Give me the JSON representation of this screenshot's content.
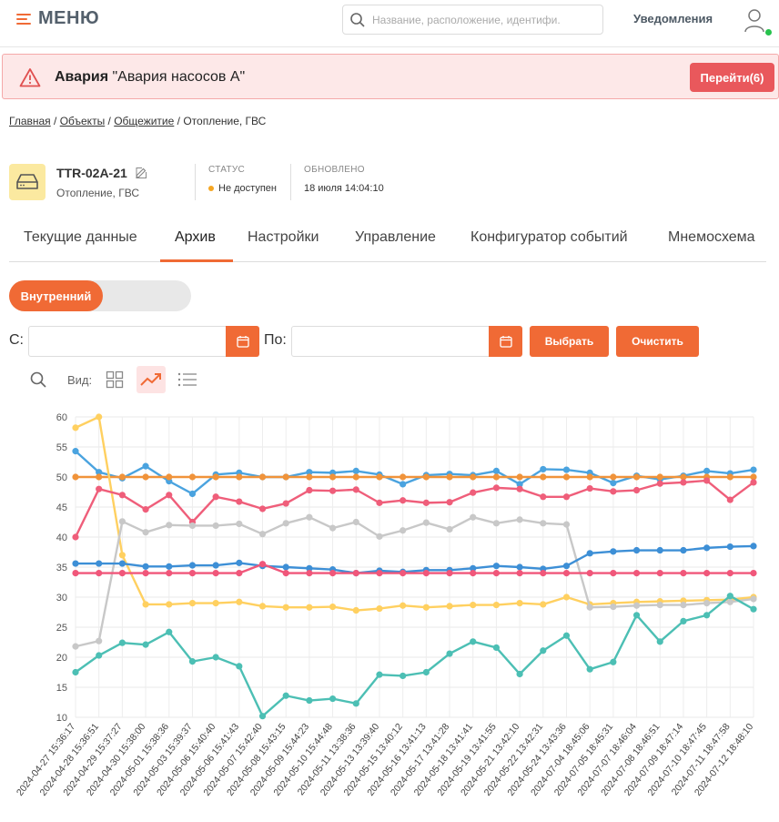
{
  "header": {
    "menu_label": "МЕНЮ",
    "search_placeholder": "Название, расположение, идентифи.",
    "notifications_label": "Уведомления"
  },
  "alarm": {
    "title": "Авария",
    "message": "\"Авария насосов А\"",
    "button_label": "Перейти(6)",
    "color": "#e9585c"
  },
  "breadcrumb": {
    "items": [
      "Главная",
      "Объекты",
      "Общежитие"
    ],
    "current": "Отопление, ГВС"
  },
  "device": {
    "name": "TTR-02A-21",
    "subtitle": "Отопление, ГВС",
    "status_label": "СТАТУС",
    "status_value": "Не доступен",
    "updated_label": "ОБНОВЛЕНО",
    "updated_value": "18 июля 14:04:10"
  },
  "tabs": [
    "Текущие данные",
    "Архив",
    "Настройки",
    "Управление",
    "Конфигуратор событий",
    "Мнемосхема"
  ],
  "active_tab": "Архив",
  "toggle": {
    "label": "Внутренний"
  },
  "filter": {
    "from_label": "С:",
    "to_label": "По:",
    "from_value": "",
    "to_value": "",
    "select_button": "Выбрать",
    "clear_button": "Очистить"
  },
  "view": {
    "label": "Вид:",
    "active": "chart"
  },
  "accent_color": "#f06a35",
  "chart_data": {
    "type": "line",
    "ylim": [
      10,
      60
    ],
    "yticks": [
      10,
      15,
      20,
      25,
      30,
      35,
      40,
      45,
      50,
      55,
      60
    ],
    "grid": true,
    "x": [
      "2024-04-27 15:36:17",
      "2024-04-28 15:36:51",
      "2024-04-29 15:37:27",
      "2024-04-30 15:38:00",
      "2024-05-01 15:38:36",
      "2024-05-03 15:39:37",
      "2024-05-06 15:40:40",
      "2024-05-06 15:41:43",
      "2024-05-07 15:42:40",
      "2024-05-08 15:43:15",
      "2024-05-09 15:44:23",
      "2024-05-10 15:44:48",
      "2024-05-11 13:38:36",
      "2024-05-13 13:39:40",
      "2024-05-15 13:40:12",
      "2024-05-16 13:41:13",
      "2024-05-17 13:41:28",
      "2024-05-18 13:41:41",
      "2024-05-19 13:41:55",
      "2024-05-21 13:42:10",
      "2024-05-22 13:42:31",
      "2024-05-24 13:43:36",
      "2024-07-04 18:45:06",
      "2024-07-05 18:45:31",
      "2024-07-07 18:46:04",
      "2024-07-08 18:46:51",
      "2024-07-09 18:47:14",
      "2024-07-10 18:47:45",
      "2024-07-11 18:47:58",
      "2024-07-12 18:48:10"
    ],
    "series": [
      {
        "color": "#4aa3df",
        "values": [
          54.3,
          50.8,
          49.8,
          51.8,
          49.3,
          47.2,
          50.4,
          50.7,
          50.0,
          50.0,
          50.8,
          50.7,
          51.0,
          50.4,
          48.8,
          50.3,
          50.5,
          50.3,
          51.0,
          48.8,
          51.3,
          51.2,
          50.7,
          49.0,
          50.2,
          49.6,
          50.2,
          51.0,
          50.6,
          51.2
        ]
      },
      {
        "color": "#f0933a",
        "values": [
          50.0,
          50.0,
          50.0,
          50.0,
          50.0,
          50.0,
          50.0,
          50.0,
          50.0,
          50.0,
          50.0,
          50.0,
          50.0,
          50.0,
          50.0,
          50.0,
          50.0,
          50.0,
          50.0,
          50.0,
          50.0,
          50.0,
          50.0,
          50.0,
          50.0,
          50.0,
          50.0,
          50.0,
          50.0,
          50.0
        ]
      },
      {
        "color": "#ffd060",
        "values": [
          58.2,
          60.0,
          37.0,
          28.8,
          28.8,
          29.0,
          29.0,
          29.2,
          28.5,
          28.3,
          28.3,
          28.4,
          27.8,
          28.1,
          28.6,
          28.3,
          28.5,
          28.7,
          28.7,
          29.0,
          28.8,
          30.0,
          28.8,
          29.0,
          29.2,
          29.3,
          29.4,
          29.5,
          29.6,
          30.0
        ]
      },
      {
        "color": "#ef5e7a",
        "values": [
          40.0,
          48.0,
          47.0,
          44.6,
          47.0,
          42.5,
          46.7,
          45.9,
          44.7,
          45.6,
          47.8,
          47.7,
          47.9,
          45.7,
          46.1,
          45.7,
          45.8,
          47.4,
          48.2,
          48.0,
          46.7,
          46.7,
          48.1,
          47.6,
          47.8,
          48.9,
          49.1,
          49.4,
          46.2,
          49.1
        ]
      },
      {
        "color": "#c8c8c8",
        "values": [
          21.8,
          22.7,
          42.6,
          40.8,
          42.0,
          41.9,
          41.9,
          42.2,
          40.5,
          42.3,
          43.3,
          41.5,
          42.5,
          40.1,
          41.1,
          42.4,
          41.3,
          43.3,
          42.3,
          42.9,
          42.3,
          42.1,
          28.3,
          28.4,
          28.6,
          28.7,
          28.7,
          29.0,
          29.2,
          29.7
        ]
      },
      {
        "color": "#3d8fd6",
        "values": [
          35.6,
          35.6,
          35.6,
          35.1,
          35.1,
          35.3,
          35.3,
          35.7,
          35.2,
          35.0,
          34.8,
          34.6,
          34.0,
          34.4,
          34.2,
          34.5,
          34.5,
          34.8,
          35.2,
          35.0,
          34.7,
          35.2,
          37.3,
          37.6,
          37.8,
          37.8,
          37.8,
          38.2,
          38.4,
          38.5
        ]
      },
      {
        "color": "#f0577a",
        "values": [
          34.0,
          34.0,
          34.0,
          34.0,
          34.0,
          34.0,
          34.0,
          34.0,
          35.5,
          34.0,
          34.0,
          34.0,
          34.0,
          34.0,
          34.0,
          34.0,
          34.0,
          34.0,
          34.0,
          34.0,
          34.0,
          34.0,
          34.0,
          34.0,
          34.0,
          34.0,
          34.0,
          34.0,
          34.0,
          34.0
        ]
      },
      {
        "color": "#4cbfb4",
        "values": [
          17.5,
          20.3,
          22.4,
          22.1,
          24.2,
          19.3,
          20.0,
          18.5,
          10.2,
          13.6,
          12.8,
          13.1,
          12.3,
          17.1,
          16.9,
          17.5,
          20.6,
          22.6,
          21.6,
          17.2,
          21.1,
          23.6,
          18.0,
          19.2,
          27.0,
          22.6,
          26.0,
          27.0,
          30.2,
          28.0
        ]
      }
    ]
  }
}
